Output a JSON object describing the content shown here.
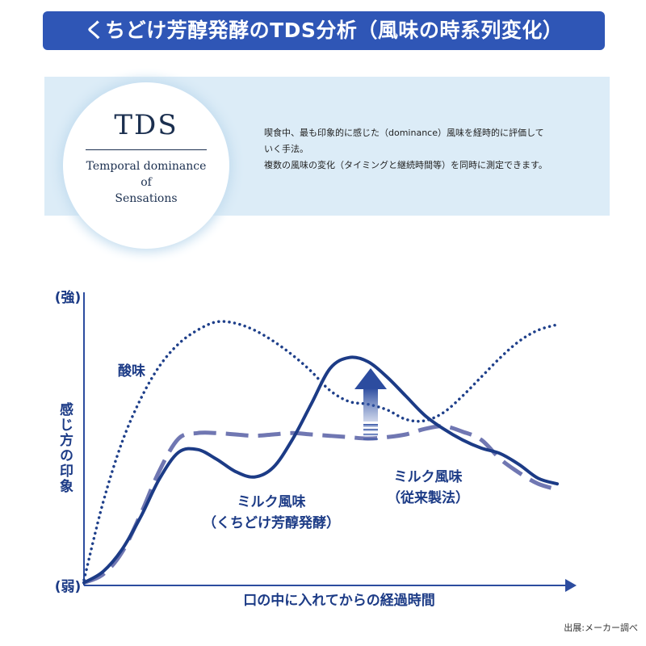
{
  "header": {
    "title": "くちどけ芳醇発酵のTDS分析（風味の時系列変化）"
  },
  "tds": {
    "abbr": "TDS",
    "full_line1": "Temporal dominance",
    "full_line2": "of",
    "full_line3": "Sensations",
    "desc_line1": "喫食中、最も印象的に感じた（dominance）風味を経時的に評価して",
    "desc_line2": "いく手法。",
    "desc_line3": "複数の風味の変化（タイミングと継続時間等）を同時に測定できます。"
  },
  "chart_data": {
    "type": "line",
    "title": "",
    "xlabel": "口の中に入れてからの経過時間",
    "ylabel": "感じ方の印象",
    "y_top_label": "(強)",
    "y_bottom_label": "(弱)",
    "xlim": [
      0,
      10
    ],
    "ylim": [
      0,
      10
    ],
    "series": [
      {
        "name": "酸味",
        "label_lines": [
          "酸味"
        ],
        "style": "dotted",
        "color": "#1e3f8a",
        "x": [
          0,
          0.4,
          0.8,
          1.2,
          1.6,
          2.0,
          2.4,
          2.8,
          3.2,
          3.6,
          4.0,
          4.4,
          4.8,
          5.2,
          5.6,
          6.0,
          6.4,
          6.8,
          7.2,
          7.6,
          8.0,
          8.4,
          8.8,
          9.2,
          9.6,
          10.0
        ],
        "y": [
          0.2,
          3.0,
          5.2,
          6.8,
          8.0,
          8.8,
          9.3,
          9.6,
          9.55,
          9.3,
          8.9,
          8.4,
          7.8,
          7.1,
          6.7,
          6.6,
          6.4,
          6.05,
          6.0,
          6.3,
          6.9,
          7.6,
          8.3,
          8.9,
          9.3,
          9.5
        ]
      },
      {
        "name": "ミルク風味（くちどけ芳醇発酵）",
        "label_lines": [
          "ミルク風味",
          "（くちどけ芳醇発酵）"
        ],
        "style": "solid",
        "color": "#1c3b86",
        "x": [
          0,
          0.4,
          0.8,
          1.2,
          1.6,
          2.0,
          2.4,
          2.8,
          3.2,
          3.6,
          4.0,
          4.4,
          4.8,
          5.2,
          5.6,
          6.0,
          6.4,
          6.8,
          7.2,
          7.6,
          8.0,
          8.4,
          8.8,
          9.2,
          9.6,
          10.0
        ],
        "y": [
          0.1,
          0.5,
          1.3,
          2.5,
          3.9,
          4.85,
          4.95,
          4.6,
          4.15,
          3.95,
          4.3,
          5.3,
          6.6,
          7.9,
          8.3,
          8.15,
          7.6,
          6.9,
          6.2,
          5.7,
          5.3,
          5.0,
          4.8,
          4.4,
          3.9,
          3.7
        ]
      },
      {
        "name": "ミルク風味（従来製法）",
        "label_lines": [
          "ミルク風味",
          "（従来製法）"
        ],
        "style": "dashed",
        "color": "#7077b2",
        "x": [
          0,
          0.4,
          0.8,
          1.2,
          1.6,
          2.0,
          2.4,
          2.8,
          3.2,
          3.6,
          4.0,
          4.4,
          4.8,
          5.2,
          5.6,
          6.0,
          6.4,
          6.8,
          7.2,
          7.6,
          8.0,
          8.4,
          8.8,
          9.2,
          9.6,
          10.0
        ],
        "y": [
          0.1,
          0.4,
          1.2,
          2.6,
          4.2,
          5.35,
          5.55,
          5.55,
          5.5,
          5.45,
          5.5,
          5.55,
          5.5,
          5.45,
          5.4,
          5.35,
          5.4,
          5.5,
          5.7,
          5.8,
          5.6,
          5.3,
          4.6,
          4.1,
          3.7,
          3.5
        ]
      }
    ],
    "annotation": {
      "type": "up-arrow",
      "meaning": "くちどけ芳醇発酵でミルク風味が向上"
    }
  },
  "footer": {
    "credit": "出展:メーカー調べ"
  }
}
